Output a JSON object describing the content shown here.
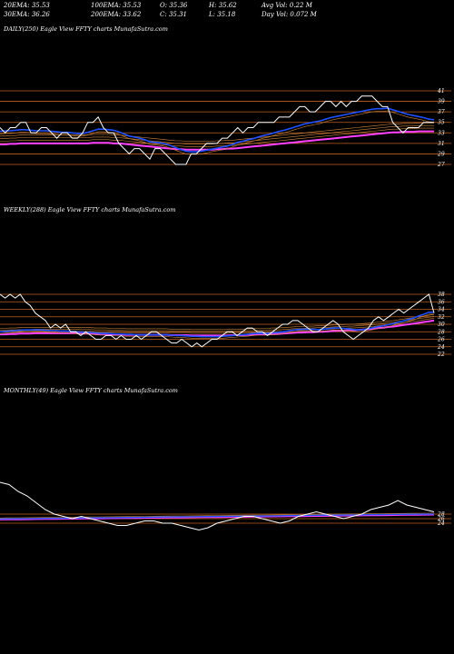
{
  "header": {
    "row1": [
      "20EMA: 35.53",
      "100EMA: 35.53",
      "O: 35.36",
      "H: 35.62",
      "Avg Vol: 0.22  M"
    ],
    "row2": [
      "30EMA: 36.26",
      "200EMA: 33.62",
      "C: 35.31",
      "L: 35.18",
      "Day Vol: 0.072  M"
    ]
  },
  "panels": {
    "daily_label": "DAILY(250) Eagle   View  FFTY charts MunafaSutra.com",
    "weekly_label": "WEEKLY(288) Eagle   View  FFTY charts MunafaSutra.com",
    "monthly_label": "MONTHLY(49) Eagle   View  FFTY charts MunafaSutra.com"
  },
  "colors": {
    "price": "#ffffff",
    "ema_blue": "#1e50ff",
    "ema_magenta": "#ff40ff",
    "ema_brown": "#d08840",
    "gridline": "#c06020"
  },
  "chart_data": [
    {
      "type": "line",
      "title": "DAILY(250)",
      "y_ticks": [
        "41",
        "39",
        "37",
        "35",
        "33",
        "31",
        "29",
        "27"
      ],
      "price": [
        34,
        33,
        34,
        34,
        35,
        35,
        33,
        33,
        34,
        34,
        33,
        32,
        33,
        33,
        32,
        32,
        33,
        35,
        35,
        36,
        34,
        33,
        33,
        31,
        30,
        29,
        30,
        30,
        29,
        28,
        30,
        30,
        29,
        28,
        27,
        27,
        27,
        29,
        29,
        30,
        31,
        31,
        31,
        32,
        32,
        33,
        34,
        33,
        34,
        34,
        35,
        35,
        35,
        35,
        36,
        36,
        36,
        37,
        38,
        38,
        37,
        37,
        38,
        39,
        39,
        38,
        39,
        38,
        39,
        39,
        40,
        40,
        40,
        39,
        38,
        38,
        35,
        34,
        33,
        34,
        34,
        34,
        35,
        35,
        35
      ],
      "ema_blue": [
        33.3,
        33.4,
        33.4,
        33.5,
        33.6,
        33.6,
        33.5,
        33.4,
        33.4,
        33.4,
        33.3,
        33.2,
        33.1,
        33.1,
        33.0,
        32.9,
        32.9,
        33.1,
        33.4,
        33.7,
        33.7,
        33.6,
        33.5,
        33.2,
        32.8,
        32.4,
        32.2,
        32.0,
        31.7,
        31.3,
        31.2,
        31.1,
        30.9,
        30.6,
        30.2,
        29.8,
        29.5,
        29.4,
        29.4,
        29.5,
        29.7,
        29.9,
        30.1,
        30.3,
        30.5,
        30.8,
        31.2,
        31.4,
        31.7,
        31.9,
        32.2,
        32.5,
        32.7,
        33.0,
        33.3,
        33.5,
        33.8,
        34.1,
        34.4,
        34.7,
        34.9,
        35.1,
        35.3,
        35.6,
        35.9,
        36.1,
        36.3,
        36.5,
        36.7,
        36.9,
        37.1,
        37.3,
        37.5,
        37.6,
        37.6,
        37.7,
        37.4,
        37.1,
        36.8,
        36.5,
        36.3,
        36.1,
        35.9,
        35.6,
        35.5
      ],
      "ema_magenta": [
        30.8,
        30.8,
        30.9,
        30.9,
        31.0,
        31.0,
        31.0,
        31.0,
        31.0,
        31.0,
        31.0,
        31.0,
        31.0,
        31.0,
        31.0,
        31.0,
        31.0,
        31.0,
        31.1,
        31.1,
        31.1,
        31.1,
        31.0,
        31.0,
        30.9,
        30.8,
        30.7,
        30.6,
        30.5,
        30.4,
        30.3,
        30.2,
        30.1,
        30.0,
        29.9,
        29.9,
        29.8,
        29.8,
        29.8,
        29.8,
        29.8,
        29.8,
        29.9,
        29.9,
        30.0,
        30.0,
        30.1,
        30.2,
        30.3,
        30.4,
        30.5,
        30.6,
        30.7,
        30.8,
        30.9,
        31.0,
        31.1,
        31.2,
        31.3,
        31.4,
        31.5,
        31.6,
        31.7,
        31.8,
        31.9,
        32.0,
        32.1,
        32.2,
        32.3,
        32.4,
        32.5,
        32.6,
        32.7,
        32.8,
        32.9,
        33.0,
        33.1,
        33.1,
        33.2,
        33.2,
        33.2,
        33.3,
        33.3,
        33.3,
        33.3
      ]
    },
    {
      "type": "line",
      "title": "WEEKLY(288)",
      "y_ticks": [
        "38",
        "36",
        "34",
        "32",
        "30",
        "28",
        "26",
        "24",
        "22"
      ],
      "price": [
        38,
        37,
        38,
        37,
        38,
        36,
        35,
        33,
        32,
        31,
        29,
        30,
        29,
        30,
        28,
        28,
        27,
        28,
        27,
        26,
        26,
        27,
        27,
        26,
        27,
        26,
        26,
        27,
        26,
        27,
        28,
        28,
        27,
        26,
        25,
        25,
        26,
        25,
        24,
        25,
        24,
        25,
        26,
        26,
        27,
        28,
        28,
        27,
        28,
        29,
        29,
        28,
        28,
        27,
        28,
        29,
        30,
        30,
        31,
        31,
        30,
        29,
        28,
        28,
        29,
        30,
        31,
        30,
        28,
        27,
        26,
        27,
        28,
        29,
        31,
        32,
        31,
        32,
        33,
        34,
        33,
        34,
        35,
        36,
        37,
        38,
        33
      ],
      "ema_blue": [
        28.0,
        28.1,
        28.2,
        28.3,
        28.4,
        28.5,
        28.5,
        28.5,
        28.5,
        28.4,
        28.3,
        28.3,
        28.2,
        28.2,
        28.1,
        28.0,
        27.9,
        27.9,
        27.8,
        27.7,
        27.6,
        27.6,
        27.5,
        27.4,
        27.4,
        27.3,
        27.3,
        27.2,
        27.2,
        27.2,
        27.2,
        27.2,
        27.2,
        27.2,
        27.1,
        27.0,
        27.0,
        26.9,
        26.8,
        26.8,
        26.7,
        26.7,
        26.7,
        26.7,
        26.8,
        26.9,
        27.0,
        27.1,
        27.2,
        27.3,
        27.5,
        27.6,
        27.6,
        27.6,
        27.7,
        27.8,
        28.0,
        28.2,
        28.4,
        28.6,
        28.7,
        28.7,
        28.7,
        28.6,
        28.7,
        28.8,
        29.0,
        29.0,
        28.9,
        28.8,
        28.6,
        28.5,
        28.6,
        28.8,
        29.1,
        29.4,
        29.6,
        29.9,
        30.2,
        30.6,
        30.9,
        31.3,
        31.7,
        32.2,
        32.7,
        33.2,
        33.2
      ],
      "ema_magenta": [
        27.3,
        27.3,
        27.4,
        27.4,
        27.5,
        27.5,
        27.5,
        27.6,
        27.6,
        27.6,
        27.6,
        27.6,
        27.6,
        27.6,
        27.6,
        27.6,
        27.5,
        27.5,
        27.5,
        27.4,
        27.4,
        27.4,
        27.3,
        27.3,
        27.3,
        27.2,
        27.2,
        27.2,
        27.2,
        27.2,
        27.2,
        27.2,
        27.2,
        27.2,
        27.1,
        27.1,
        27.1,
        27.1,
        27.0,
        27.0,
        27.0,
        27.0,
        27.0,
        27.0,
        27.0,
        27.0,
        27.1,
        27.1,
        27.1,
        27.2,
        27.2,
        27.3,
        27.3,
        27.3,
        27.4,
        27.4,
        27.5,
        27.6,
        27.7,
        27.8,
        27.8,
        27.9,
        27.9,
        28.0,
        28.0,
        28.1,
        28.2,
        28.3,
        28.3,
        28.4,
        28.4,
        28.5,
        28.6,
        28.7,
        28.8,
        29.0,
        29.1,
        29.3,
        29.4,
        29.6,
        29.8,
        30.0,
        30.2,
        30.4,
        30.6,
        30.8,
        31.0
      ]
    },
    {
      "type": "line",
      "title": "MONTHLY(49)",
      "y_ticks": [
        "28",
        "26",
        "24"
      ],
      "price": [
        42,
        41,
        38,
        36,
        33,
        30,
        28,
        27,
        26,
        27,
        26,
        25,
        24,
        23,
        23,
        24,
        25,
        25,
        24,
        24,
        23,
        22,
        21,
        22,
        24,
        25,
        26,
        27,
        27,
        26,
        25,
        24,
        25,
        27,
        28,
        29,
        28,
        27,
        26,
        27,
        28,
        30,
        31,
        32,
        34,
        32,
        31,
        30,
        29
      ]
    }
  ]
}
